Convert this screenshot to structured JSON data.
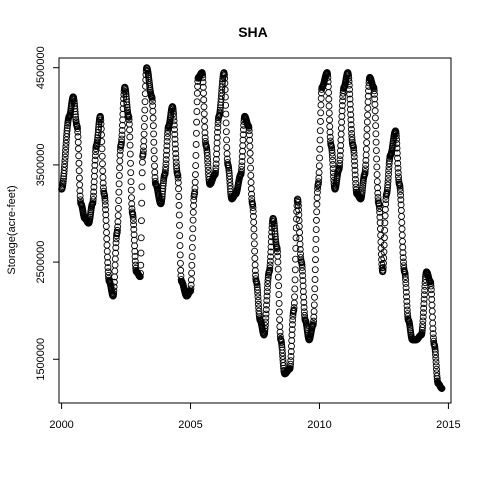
{
  "chart_data": {
    "type": "scatter",
    "title": "SHA",
    "xlabel": "",
    "ylabel": "Storage(acre-feet)",
    "xlim": [
      1999.9,
      2015.1
    ],
    "ylim": [
      1050000,
      4600000
    ],
    "xticks": [
      2000,
      2005,
      2010,
      2015
    ],
    "xtick_labels": [
      "2000",
      "2005",
      "2010",
      "2015"
    ],
    "yticks": [
      1500000,
      2500000,
      3500000,
      4500000
    ],
    "ytick_labels": [
      "1500000",
      "2500000",
      "3500000",
      "4500000"
    ],
    "grid": false,
    "marker": "open-circle",
    "marker_color": "#000000",
    "keypoints": {
      "x": [
        2000.0,
        2000.3,
        2000.45,
        2000.6,
        2000.75,
        2000.9,
        2001.05,
        2001.2,
        2001.35,
        2001.5,
        2001.65,
        2001.85,
        2002.0,
        2002.15,
        2002.3,
        2002.45,
        2002.6,
        2002.75,
        2002.9,
        2003.05,
        2003.15,
        2003.3,
        2003.5,
        2003.65,
        2003.85,
        2004.0,
        2004.15,
        2004.3,
        2004.5,
        2004.65,
        2004.85,
        2005.0,
        2005.15,
        2005.3,
        2005.45,
        2005.6,
        2005.75,
        2005.95,
        2006.1,
        2006.3,
        2006.45,
        2006.6,
        2006.75,
        2006.95,
        2007.1,
        2007.25,
        2007.4,
        2007.55,
        2007.7,
        2007.85,
        2008.05,
        2008.2,
        2008.35,
        2008.5,
        2008.65,
        2008.85,
        2009.0,
        2009.15,
        2009.3,
        2009.45,
        2009.6,
        2009.75,
        2009.95,
        2010.1,
        2010.3,
        2010.45,
        2010.6,
        2010.75,
        2010.95,
        2011.1,
        2011.3,
        2011.45,
        2011.6,
        2011.75,
        2011.95,
        2012.1,
        2012.3,
        2012.45,
        2012.6,
        2012.75,
        2012.95,
        2013.1,
        2013.3,
        2013.45,
        2013.6,
        2013.75,
        2013.95,
        2014.15,
        2014.3,
        2014.45,
        2014.6,
        2014.75
      ],
      "y": [
        3250000,
        4000000,
        4200000,
        3900000,
        3100000,
        2950000,
        2900000,
        3100000,
        3700000,
        4000000,
        3200000,
        2300000,
        2150000,
        2800000,
        3700000,
        4300000,
        4000000,
        3000000,
        2400000,
        2350000,
        3600000,
        4500000,
        4200000,
        3300000,
        3100000,
        3400000,
        3900000,
        4100000,
        3400000,
        2300000,
        2150000,
        2200000,
        3200000,
        4400000,
        4450000,
        3700000,
        3300000,
        3400000,
        4000000,
        4450000,
        3500000,
        3150000,
        3200000,
        3400000,
        4000000,
        3900000,
        3100000,
        2300000,
        1900000,
        1750000,
        2400000,
        2950000,
        2650000,
        1700000,
        1350000,
        1400000,
        2000000,
        3150000,
        2500000,
        1900000,
        1700000,
        1850000,
        3300000,
        4300000,
        4450000,
        3700000,
        3250000,
        3450000,
        4300000,
        4450000,
        3700000,
        3200000,
        3150000,
        3400000,
        4400000,
        4300000,
        3100000,
        2400000,
        3200000,
        3600000,
        3850000,
        3300000,
        2400000,
        1900000,
        1700000,
        1700000,
        1750000,
        2400000,
        2300000,
        1650000,
        1250000,
        1200000
      ]
    }
  }
}
